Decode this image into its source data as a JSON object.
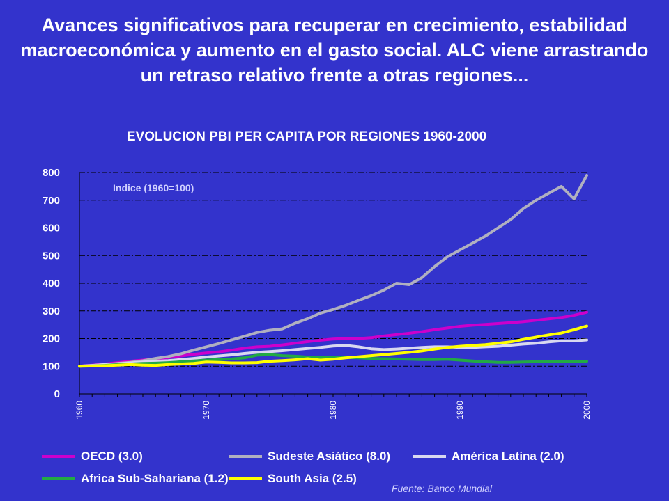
{
  "headline": "Avances significativos  para recuperar en crecimiento, estabilidad macroeconómica y aumento en el gasto social. ALC viene arrastrando un retraso relativo frente a otras regiones...",
  "source": "Fuente: Banco Mundial",
  "chart_data": {
    "type": "line",
    "title": "EVOLUCION PBI PER CAPITA POR REGIONES 1960-2000",
    "ylabel": "Indice (1960=100)",
    "xlabel": "",
    "ylim": [
      0,
      800
    ],
    "yticks": [
      "0",
      "100",
      "200",
      "300",
      "400",
      "500",
      "600",
      "700",
      "800"
    ],
    "xlim": [
      1960,
      2000
    ],
    "xticks": [
      "1960",
      "1970",
      "1980",
      "1990",
      "2000"
    ],
    "grid": "horizontal dash-dot",
    "legend_position": "bottom",
    "x": [
      1960,
      1961,
      1962,
      1963,
      1964,
      1965,
      1966,
      1967,
      1968,
      1969,
      1970,
      1971,
      1972,
      1973,
      1974,
      1975,
      1976,
      1977,
      1978,
      1979,
      1980,
      1981,
      1982,
      1983,
      1984,
      1985,
      1986,
      1987,
      1988,
      1989,
      1990,
      1991,
      1992,
      1993,
      1994,
      1995,
      1996,
      1997,
      1998,
      1999,
      2000
    ],
    "series": [
      {
        "name": "OECD (3.0)",
        "color": "#cc00cc",
        "values": [
          100,
          104,
          108,
          113,
          118,
          122,
          127,
          131,
          137,
          143,
          148,
          152,
          158,
          165,
          170,
          172,
          177,
          183,
          189,
          194,
          198,
          200,
          200,
          203,
          209,
          214,
          219,
          225,
          232,
          238,
          244,
          248,
          251,
          254,
          257,
          261,
          266,
          271,
          276,
          284,
          295
        ]
      },
      {
        "name": "Sudeste Asiático (8.0)",
        "color": "#b0b0c0",
        "values": [
          100,
          103,
          106,
          110,
          114,
          120,
          128,
          135,
          145,
          158,
          170,
          182,
          195,
          208,
          222,
          230,
          235,
          255,
          272,
          292,
          305,
          320,
          338,
          355,
          375,
          400,
          395,
          420,
          460,
          495,
          520,
          545,
          570,
          600,
          630,
          670,
          700,
          725,
          750,
          705,
          790
        ]
      },
      {
        "name": "América Latina (2.0)",
        "color": "#d8d8f0",
        "values": [
          100,
          103,
          106,
          109,
          112,
          115,
          118,
          120,
          124,
          128,
          133,
          137,
          141,
          146,
          150,
          153,
          156,
          160,
          164,
          168,
          173,
          175,
          170,
          163,
          160,
          162,
          165,
          168,
          170,
          170,
          168,
          168,
          170,
          172,
          176,
          180,
          183,
          188,
          192,
          192,
          195
        ]
      },
      {
        "name": "Africa Sub-Sahariana (1.2)",
        "color": "#22aa44",
        "values": [
          100,
          101,
          103,
          106,
          108,
          110,
          111,
          113,
          116,
          119,
          122,
          124,
          126,
          130,
          140,
          142,
          138,
          136,
          133,
          131,
          133,
          132,
          130,
          128,
          127,
          126,
          125,
          124,
          124,
          125,
          122,
          119,
          116,
          114,
          114,
          115,
          116,
          117,
          117,
          117,
          118
        ]
      },
      {
        "name": "South Asia (2.5)",
        "color": "#ffff00",
        "values": [
          100,
          101,
          102,
          104,
          106,
          104,
          103,
          106,
          108,
          110,
          115,
          114,
          112,
          112,
          113,
          118,
          120,
          123,
          127,
          122,
          125,
          130,
          134,
          138,
          142,
          146,
          150,
          155,
          162,
          168,
          172,
          175,
          178,
          183,
          188,
          197,
          205,
          213,
          220,
          232,
          245
        ]
      }
    ]
  }
}
